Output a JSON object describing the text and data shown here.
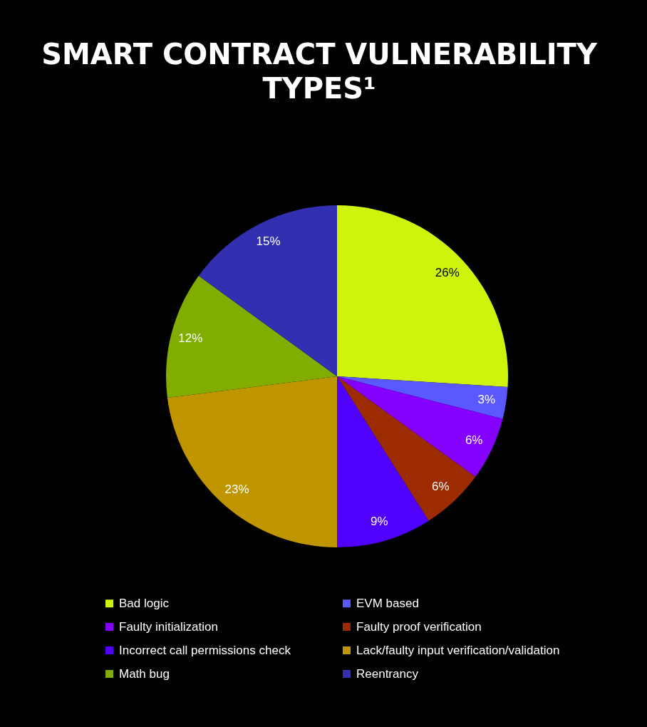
{
  "chart_data": {
    "type": "pie",
    "title": "SMART CONTRACT VULNERABILITY TYPES¹",
    "categories": [
      "Bad logic",
      "EVM based",
      "Faulty initialization",
      "Faulty proof verification",
      "Incorrect call permissions check",
      "Lack/faulty input verification/validation",
      "Math bug",
      "Reentrancy"
    ],
    "values": [
      26,
      3,
      6,
      6,
      9,
      23,
      12,
      15
    ],
    "value_labels": [
      "26%",
      "3%",
      "6%",
      "6%",
      "9%",
      "23%",
      "12%",
      "15%"
    ],
    "colors": [
      "#cff30a",
      "#5a58ff",
      "#8400ff",
      "#9c2b00",
      "#5000ff",
      "#bf9500",
      "#80ad00",
      "#3230b0"
    ],
    "legend": "bottom"
  }
}
